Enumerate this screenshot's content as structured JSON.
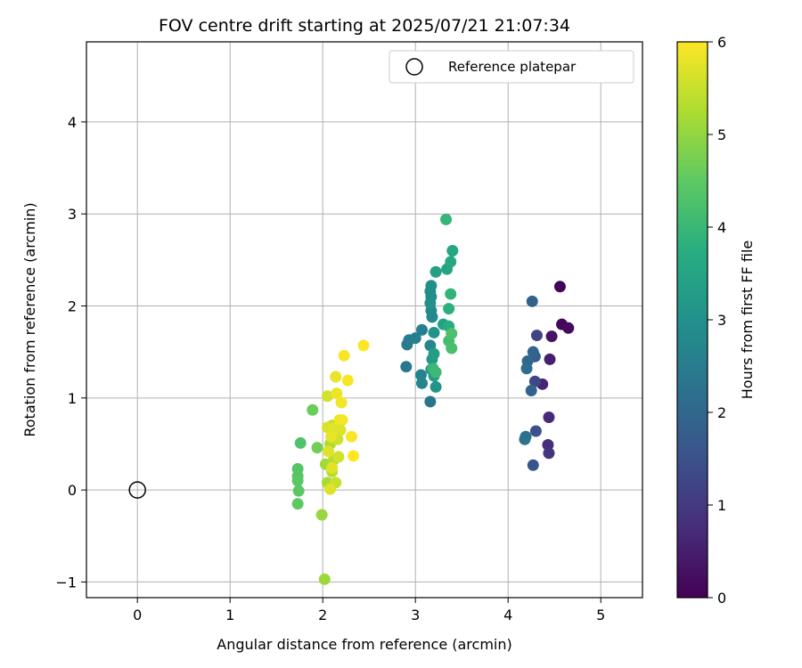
{
  "chart_data": {
    "type": "scatter",
    "title": "FOV centre drift starting at 2025/07/21 21:07:34",
    "xlabel": "Angular distance from reference (arcmin)",
    "ylabel": "Rotation from reference (arcmin)",
    "xlim": [
      -0.55,
      5.45
    ],
    "ylim": [
      -1.17,
      4.87
    ],
    "xticks": [
      0,
      1,
      2,
      3,
      4,
      5
    ],
    "yticks": [
      -1,
      0,
      1,
      2,
      3,
      4
    ],
    "grid": true,
    "legend": {
      "placement": "top-right",
      "entries": [
        "Reference platepar"
      ]
    },
    "reference_point": {
      "name": "Reference platepar",
      "x": 0,
      "y": 0
    },
    "colorbar": {
      "label": "Hours from first FF file",
      "range": [
        0,
        6
      ],
      "ticks": [
        0,
        1,
        2,
        3,
        4,
        5,
        6
      ],
      "colormap": "viridis"
    },
    "points": [
      [
        4.56,
        2.21,
        0.05
      ],
      [
        4.58,
        1.8,
        0.1
      ],
      [
        4.65,
        1.76,
        0.15
      ],
      [
        4.47,
        1.67,
        0.3
      ],
      [
        4.45,
        1.42,
        0.5
      ],
      [
        4.37,
        1.15,
        0.6
      ],
      [
        4.44,
        0.79,
        0.7
      ],
      [
        4.43,
        0.49,
        0.8
      ],
      [
        4.44,
        0.4,
        0.9
      ],
      [
        4.31,
        1.68,
        1.2
      ],
      [
        4.29,
        1.18,
        1.3
      ],
      [
        4.3,
        0.64,
        1.45
      ],
      [
        4.27,
        0.27,
        1.6
      ],
      [
        4.29,
        1.45,
        1.8
      ],
      [
        4.26,
        2.05,
        1.85
      ],
      [
        4.25,
        1.08,
        1.9
      ],
      [
        4.27,
        1.5,
        1.95
      ],
      [
        4.21,
        1.4,
        2.0
      ],
      [
        4.2,
        1.32,
        2.1
      ],
      [
        4.19,
        0.58,
        2.2
      ],
      [
        4.18,
        0.55,
        2.25
      ],
      [
        3.16,
        0.96,
        2.3
      ],
      [
        2.9,
        1.34,
        2.4
      ],
      [
        2.91,
        1.58,
        2.45
      ],
      [
        2.93,
        1.63,
        2.5
      ],
      [
        3.0,
        1.65,
        2.55
      ],
      [
        3.07,
        1.74,
        2.6
      ],
      [
        3.06,
        1.25,
        2.65
      ],
      [
        3.07,
        1.16,
        2.7
      ],
      [
        3.16,
        1.57,
        2.75
      ],
      [
        3.18,
        1.88,
        2.8
      ],
      [
        3.17,
        1.95,
        2.85
      ],
      [
        3.17,
        2.1,
        2.88
      ],
      [
        3.16,
        2.16,
        2.92
      ],
      [
        3.17,
        2.22,
        2.95
      ],
      [
        3.16,
        2.03,
        3.0
      ],
      [
        3.2,
        1.71,
        3.05
      ],
      [
        3.22,
        1.12,
        3.1
      ],
      [
        3.18,
        1.42,
        3.15
      ],
      [
        3.17,
        1.31,
        3.2
      ],
      [
        3.2,
        1.24,
        3.25
      ],
      [
        3.2,
        1.48,
        3.3
      ],
      [
        3.22,
        2.37,
        3.4
      ],
      [
        3.3,
        1.8,
        3.45
      ],
      [
        3.34,
        2.4,
        3.5
      ],
      [
        3.4,
        2.6,
        3.55
      ],
      [
        3.38,
        2.48,
        3.6
      ],
      [
        3.36,
        1.78,
        3.7
      ],
      [
        3.36,
        1.97,
        3.8
      ],
      [
        3.38,
        2.13,
        3.9
      ],
      [
        3.33,
        2.94,
        3.95
      ],
      [
        3.19,
        1.32,
        4.0
      ],
      [
        3.22,
        1.28,
        4.05
      ],
      [
        3.36,
        1.62,
        4.15
      ],
      [
        3.39,
        1.54,
        4.2
      ],
      [
        3.39,
        1.7,
        4.25
      ],
      [
        1.76,
        0.51,
        4.3
      ],
      [
        1.73,
        0.23,
        4.35
      ],
      [
        1.73,
        0.15,
        4.4
      ],
      [
        1.73,
        0.1,
        4.45
      ],
      [
        1.74,
        -0.01,
        4.45
      ],
      [
        1.73,
        -0.15,
        4.5
      ],
      [
        1.89,
        0.87,
        4.6
      ],
      [
        1.94,
        0.46,
        4.7
      ],
      [
        1.99,
        -0.27,
        5.05
      ],
      [
        2.02,
        -0.97,
        5.1
      ],
      [
        2.03,
        0.28,
        5.15
      ],
      [
        2.05,
        0.08,
        5.2
      ],
      [
        2.08,
        0.5,
        5.25
      ],
      [
        2.1,
        0.2,
        5.3
      ],
      [
        2.12,
        0.33,
        5.35
      ],
      [
        2.1,
        0.7,
        5.4
      ],
      [
        2.12,
        0.56,
        5.45
      ],
      [
        2.14,
        0.08,
        5.5
      ],
      [
        2.16,
        0.55,
        5.55
      ],
      [
        2.17,
        0.36,
        5.6
      ],
      [
        2.05,
        1.02,
        5.6
      ],
      [
        2.05,
        0.68,
        5.65
      ],
      [
        2.08,
        0.01,
        5.7
      ],
      [
        2.06,
        0.42,
        5.7
      ],
      [
        2.1,
        0.24,
        5.75
      ],
      [
        2.12,
        0.67,
        5.75
      ],
      [
        2.14,
        1.23,
        5.8
      ],
      [
        2.15,
        1.05,
        5.85
      ],
      [
        2.18,
        0.76,
        5.85
      ],
      [
        2.2,
        0.95,
        5.9
      ],
      [
        2.21,
        0.76,
        5.9
      ],
      [
        2.23,
        1.46,
        5.95
      ],
      [
        2.27,
        1.19,
        5.95
      ],
      [
        2.31,
        0.58,
        5.95
      ],
      [
        2.33,
        0.37,
        6.0
      ],
      [
        2.44,
        1.57,
        6.0
      ],
      [
        2.09,
        0.58,
        5.8
      ],
      [
        2.19,
        0.65,
        5.7
      ]
    ]
  }
}
